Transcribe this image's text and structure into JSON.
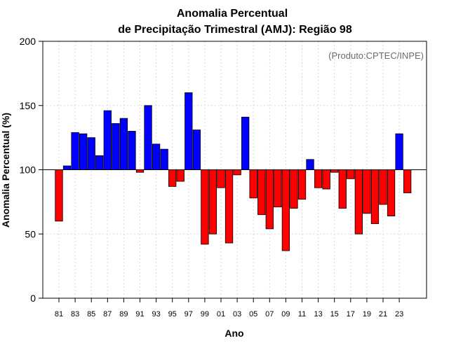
{
  "chart_data": {
    "type": "bar",
    "title": [
      "Anomalia Percentual",
      "de Precipitação Trimestral (AMJ): Região 98"
    ],
    "xlabel": "Ano",
    "ylabel": "Anomalia Percentual (%)",
    "credit": "(Produto:CPTEC/INPE)",
    "ylim": [
      0,
      200
    ],
    "yticks": [
      0,
      50,
      100,
      150,
      200
    ],
    "baseline": 100,
    "grid": true,
    "colors": {
      "above": "#0000ff",
      "below": "#ff0000",
      "edge": "#000000",
      "grid": "#d9d9d9"
    },
    "categories": [
      "81",
      "82",
      "83",
      "84",
      "85",
      "86",
      "87",
      "88",
      "89",
      "90",
      "91",
      "92",
      "93",
      "94",
      "95",
      "96",
      "97",
      "98",
      "99",
      "00",
      "01",
      "02",
      "03",
      "04",
      "05",
      "06",
      "07",
      "08",
      "09",
      "10",
      "11",
      "12",
      "13",
      "14",
      "15",
      "16",
      "17",
      "18",
      "19",
      "20",
      "21",
      "22",
      "23",
      "24"
    ],
    "xtick_labels": [
      "81",
      "83",
      "85",
      "87",
      "89",
      "91",
      "93",
      "95",
      "97",
      "99",
      "01",
      "03",
      "05",
      "07",
      "09",
      "11",
      "13",
      "15",
      "17",
      "19",
      "21",
      "23"
    ],
    "values": [
      60,
      103,
      129,
      128,
      125,
      111,
      146,
      136,
      140,
      130,
      98,
      150,
      120,
      116,
      87,
      91,
      160,
      131,
      42,
      50,
      86,
      43,
      96,
      141,
      78,
      65,
      54,
      71,
      37,
      70,
      77,
      108,
      86,
      85,
      98,
      70,
      93,
      50,
      66,
      58,
      73,
      64,
      128,
      82
    ]
  }
}
